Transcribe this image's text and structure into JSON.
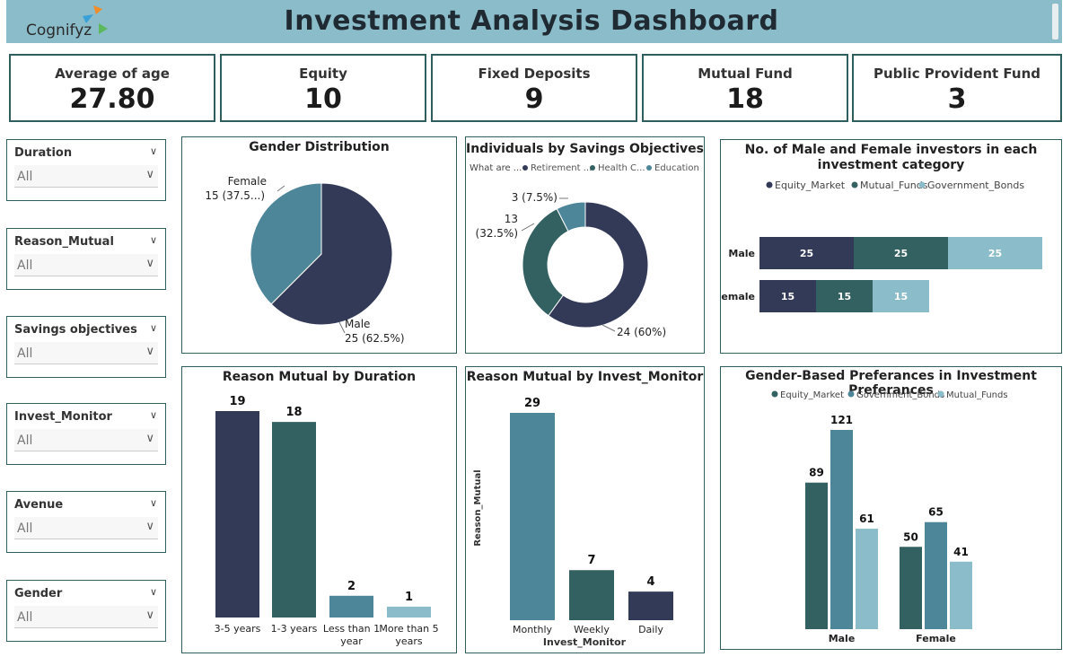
{
  "header": {
    "brand": "Cognifyz",
    "title": "Investment Analysis Dashboard"
  },
  "colors": {
    "navy": "#323a58",
    "teal": "#336060",
    "blue": "#4d8599",
    "light": "#8bbcc9",
    "border": "#2f5e5e"
  },
  "kpis": [
    {
      "label": "Average of age",
      "value": "27.80"
    },
    {
      "label": "Equity",
      "value": "10"
    },
    {
      "label": "Fixed Deposits",
      "value": "9"
    },
    {
      "label": "Mutual Fund",
      "value": "18"
    },
    {
      "label": "Public Provident Fund",
      "value": "3"
    }
  ],
  "slicers": [
    {
      "title": "Duration",
      "value": "All"
    },
    {
      "title": "Reason_Mutual",
      "value": "All"
    },
    {
      "title": "Savings objectives",
      "value": "All"
    },
    {
      "title": "Invest_Monitor",
      "value": "All"
    },
    {
      "title": "Avenue",
      "value": "All"
    },
    {
      "title": "Gender",
      "value": "All"
    }
  ],
  "chart_data": [
    {
      "type": "pie",
      "title": "Gender Distribution",
      "slices": [
        {
          "label": "Male",
          "value": 25,
          "percent": "62.5%",
          "data_label": "25 (62.5%)"
        },
        {
          "label": "Female",
          "value": 15,
          "percent": "37.5%",
          "data_label": "15 (37.5...)"
        }
      ]
    },
    {
      "type": "pie",
      "variant": "donut",
      "title": "Individuals by Savings Objectives",
      "legend_title": "What are ...",
      "legend": [
        "Retirement ...",
        "Health C...",
        "Education"
      ],
      "legend_position": "top-left",
      "slices": [
        {
          "label": "Retirement ...",
          "value": 24,
          "data_label": "24 (60%)"
        },
        {
          "label": "Health C...",
          "value": 13,
          "data_label": "13 (32.5%)"
        },
        {
          "label": "Education",
          "value": 3,
          "data_label": "3 (7.5%)"
        }
      ]
    },
    {
      "type": "bar",
      "orientation": "horizontal",
      "stacked": true,
      "title": "No. of Male and Female investors in each investment category",
      "categories": [
        "Male",
        "Female"
      ],
      "series": [
        {
          "name": "Equity_Market",
          "values": [
            25,
            15
          ]
        },
        {
          "name": "Mutual_Funds",
          "values": [
            25,
            15
          ]
        },
        {
          "name": "Government_Bonds",
          "values": [
            25,
            15
          ]
        }
      ],
      "legend_position": "top-center"
    },
    {
      "type": "bar",
      "title": "Reason Mutual by Duration",
      "categories": [
        "3-5 years",
        "1-3 years",
        "Less than 1 year",
        "More than 5 years"
      ],
      "values": [
        19,
        18,
        2,
        1
      ]
    },
    {
      "type": "bar",
      "title": "Reason Mutual by Invest_Monitor",
      "xlabel": "Invest_Monitor",
      "ylabel": "Reason_Mutual",
      "categories": [
        "Monthly",
        "Weekly",
        "Daily"
      ],
      "values": [
        29,
        7,
        4
      ]
    },
    {
      "type": "bar",
      "title": "Gender-Based Preferances in Investment Preferances",
      "categories": [
        "Male",
        "Female"
      ],
      "series": [
        {
          "name": "Equity_Market",
          "values": [
            89,
            50
          ]
        },
        {
          "name": "Government_Bonds",
          "values": [
            121,
            65
          ]
        },
        {
          "name": "Mutual_Funds",
          "values": [
            61,
            41
          ]
        }
      ],
      "legend_position": "top-center"
    }
  ]
}
